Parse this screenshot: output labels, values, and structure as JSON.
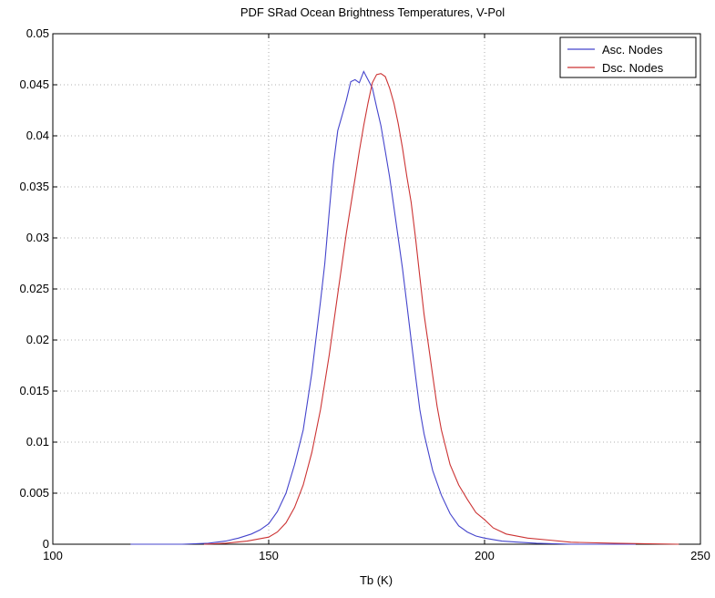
{
  "chart_data": {
    "type": "line",
    "title": "PDF SRad Ocean Brightness Temperatures, V-Pol",
    "xlabel": "Tb (K)",
    "ylabel": "",
    "xlim": [
      100,
      250
    ],
    "ylim": [
      0,
      0.05
    ],
    "xticks": [
      100,
      150,
      200,
      250
    ],
    "xtick_labels": [
      "100",
      "150",
      "200",
      "250"
    ],
    "yticks": [
      0,
      0.005,
      0.01,
      0.015,
      0.02,
      0.025,
      0.03,
      0.035,
      0.04,
      0.045,
      0.05
    ],
    "ytick_labels": [
      "0",
      "0.005",
      "0.01",
      "0.015",
      "0.02",
      "0.025",
      "0.03",
      "0.035",
      "0.04",
      "0.045",
      "0.05"
    ],
    "grid": true,
    "legend_position": "top-right",
    "series": [
      {
        "name": "Asc. Nodes",
        "color": "#4444cc",
        "x": [
          118,
          130,
          136,
          140,
          143,
          146,
          148,
          150,
          152,
          154,
          156,
          158,
          160,
          162,
          163,
          164,
          165,
          166,
          167,
          168,
          169,
          170,
          171,
          172,
          173,
          174,
          175,
          176,
          177,
          178,
          179,
          180,
          181,
          182,
          183,
          184,
          185,
          186,
          188,
          190,
          192,
          194,
          196,
          198,
          200,
          204,
          208,
          212,
          220,
          235
        ],
        "y": [
          0,
          0,
          0.0001,
          0.0003,
          0.0006,
          0.001,
          0.0014,
          0.002,
          0.0032,
          0.005,
          0.0078,
          0.0112,
          0.0168,
          0.0238,
          0.0275,
          0.0325,
          0.0372,
          0.0405,
          0.042,
          0.0435,
          0.0453,
          0.0455,
          0.0452,
          0.0463,
          0.0455,
          0.0447,
          0.0428,
          0.041,
          0.0385,
          0.036,
          0.033,
          0.03,
          0.027,
          0.0235,
          0.02,
          0.0165,
          0.0132,
          0.0108,
          0.0072,
          0.0048,
          0.003,
          0.0018,
          0.0012,
          0.0008,
          0.0006,
          0.0003,
          0.0002,
          0.0001,
          0,
          0
        ]
      },
      {
        "name": "Dsc. Nodes",
        "color": "#cc3333",
        "x": [
          135,
          140,
          145,
          150,
          152,
          154,
          156,
          158,
          160,
          162,
          164,
          166,
          168,
          170,
          171,
          172,
          173,
          174,
          175,
          176,
          177,
          178,
          179,
          180,
          181,
          182,
          183,
          184,
          185,
          186,
          187,
          188,
          189,
          190,
          192,
          194,
          196,
          198,
          200,
          202,
          205,
          210,
          215,
          220,
          230,
          245
        ],
        "y": [
          0,
          0.0001,
          0.0003,
          0.0007,
          0.0012,
          0.0021,
          0.0036,
          0.0058,
          0.009,
          0.0132,
          0.0185,
          0.0245,
          0.0305,
          0.0358,
          0.0385,
          0.041,
          0.0432,
          0.0452,
          0.046,
          0.0461,
          0.0458,
          0.0447,
          0.0432,
          0.0412,
          0.0388,
          0.036,
          0.0335,
          0.03,
          0.0262,
          0.0225,
          0.0195,
          0.0165,
          0.0135,
          0.0112,
          0.0078,
          0.0058,
          0.0044,
          0.0031,
          0.0024,
          0.0016,
          0.001,
          0.0006,
          0.0004,
          0.0002,
          0.0001,
          0
        ]
      }
    ]
  }
}
